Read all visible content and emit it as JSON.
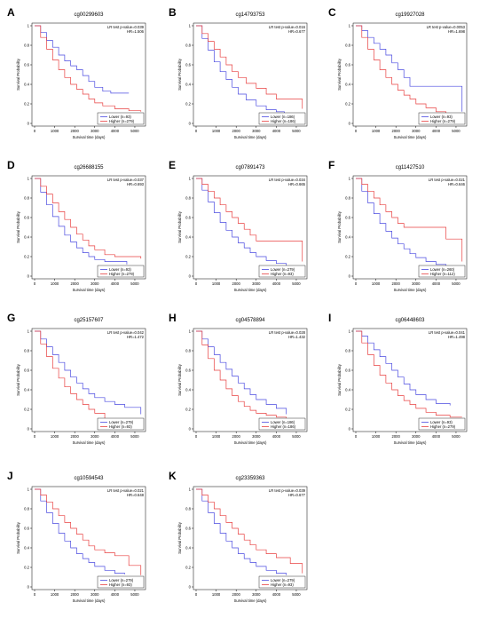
{
  "figure": {
    "xlabel": "Survival time (days)",
    "ylabel": "Survival Probability",
    "colors": {
      "lower": "#4a4ae0",
      "higher": "#e84040"
    }
  },
  "chart_data": [
    {
      "type": "line",
      "letter": "A",
      "title": "cg00299603",
      "stat1": "LR test p-value=0.039",
      "stat2": "HR=1.506",
      "xticks": [
        0,
        1000,
        2000,
        3000,
        4000,
        5000
      ],
      "yticks": [
        0,
        0.2,
        0.4,
        0.6,
        0.8,
        1.0
      ],
      "xlim": [
        0,
        5400
      ],
      "ylim": [
        0,
        1
      ],
      "series": [
        {
          "name": "Lower (n=93)",
          "color": "#4a4ae0",
          "x": [
            0,
            300,
            600,
            900,
            1200,
            1500,
            1800,
            2100,
            2400,
            2700,
            3000,
            3400,
            3800,
            4700
          ],
          "y": [
            1,
            0.93,
            0.85,
            0.78,
            0.7,
            0.64,
            0.59,
            0.55,
            0.49,
            0.43,
            0.37,
            0.33,
            0.31,
            0.31
          ]
        },
        {
          "name": "Higher (n=279)",
          "color": "#e84040",
          "x": [
            0,
            300,
            600,
            900,
            1200,
            1500,
            1800,
            2100,
            2400,
            2700,
            3000,
            3400,
            4000,
            4700,
            5300
          ],
          "y": [
            1,
            0.88,
            0.76,
            0.65,
            0.55,
            0.47,
            0.4,
            0.35,
            0.3,
            0.25,
            0.21,
            0.18,
            0.15,
            0.13,
            0.12
          ]
        }
      ]
    },
    {
      "type": "line",
      "letter": "B",
      "title": "cg14793753",
      "stat1": "LR test p-value=0.016",
      "stat2": "HR=0.677",
      "xticks": [
        0,
        1000,
        2000,
        3000,
        4000,
        5000
      ],
      "yticks": [
        0,
        0.2,
        0.4,
        0.6,
        0.8,
        1.0
      ],
      "xlim": [
        0,
        5400
      ],
      "ylim": [
        0,
        1
      ],
      "series": [
        {
          "name": "Lower (n=186)",
          "color": "#4a4ae0",
          "x": [
            0,
            300,
            600,
            900,
            1200,
            1500,
            1800,
            2100,
            2500,
            3000,
            3500,
            4000,
            4400
          ],
          "y": [
            1,
            0.87,
            0.75,
            0.63,
            0.53,
            0.45,
            0.37,
            0.3,
            0.24,
            0.18,
            0.14,
            0.12,
            0.1
          ]
        },
        {
          "name": "Higher (n=186)",
          "color": "#e84040",
          "x": [
            0,
            300,
            600,
            900,
            1200,
            1500,
            1800,
            2100,
            2500,
            3000,
            3500,
            4000,
            4500,
            5300
          ],
          "y": [
            1,
            0.92,
            0.84,
            0.76,
            0.68,
            0.6,
            0.53,
            0.47,
            0.41,
            0.36,
            0.3,
            0.25,
            0.25,
            0.15
          ]
        }
      ]
    },
    {
      "type": "line",
      "letter": "C",
      "title": "cg19927028",
      "stat1": "LR test p-value=0.0053",
      "stat2": "HR=1.698",
      "xticks": [
        0,
        1000,
        2000,
        3000,
        4000,
        5000
      ],
      "yticks": [
        0,
        0.2,
        0.4,
        0.6,
        0.8,
        1.0
      ],
      "xlim": [
        0,
        5400
      ],
      "ylim": [
        0,
        1
      ],
      "series": [
        {
          "name": "Lower (n=93)",
          "color": "#4a4ae0",
          "x": [
            0,
            300,
            600,
            900,
            1200,
            1500,
            1800,
            2100,
            2400,
            2700,
            3000,
            3500,
            4000,
            5300
          ],
          "y": [
            1,
            0.95,
            0.88,
            0.82,
            0.76,
            0.7,
            0.62,
            0.55,
            0.47,
            0.38,
            0.38,
            0.38,
            0.38,
            0.12
          ]
        },
        {
          "name": "Higher (n=279)",
          "color": "#e84040",
          "x": [
            0,
            300,
            600,
            900,
            1200,
            1500,
            1800,
            2100,
            2400,
            2700,
            3000,
            3500,
            4000,
            4500
          ],
          "y": [
            1,
            0.88,
            0.76,
            0.65,
            0.55,
            0.47,
            0.4,
            0.34,
            0.29,
            0.25,
            0.2,
            0.16,
            0.12,
            0.1
          ]
        }
      ]
    },
    {
      "type": "line",
      "letter": "D",
      "title": "cg26688155",
      "stat1": "LR test p-value=0.037",
      "stat2": "HR=0.693",
      "xticks": [
        0,
        1000,
        2000,
        3000,
        4000,
        5000
      ],
      "yticks": [
        0,
        0.2,
        0.4,
        0.6,
        0.8,
        1.0
      ],
      "xlim": [
        0,
        5400
      ],
      "ylim": [
        0,
        1
      ],
      "series": [
        {
          "name": "Lower (n=93)",
          "color": "#4a4ae0",
          "x": [
            0,
            300,
            600,
            900,
            1200,
            1500,
            1800,
            2100,
            2400,
            2700,
            3000,
            3500,
            4000,
            4600
          ],
          "y": [
            1,
            0.86,
            0.73,
            0.61,
            0.51,
            0.42,
            0.35,
            0.29,
            0.24,
            0.2,
            0.17,
            0.15,
            0.15,
            0.12
          ]
        },
        {
          "name": "Higher (n=279)",
          "color": "#e84040",
          "x": [
            0,
            300,
            600,
            900,
            1200,
            1500,
            1800,
            2100,
            2400,
            2700,
            3000,
            3500,
            4000,
            4500,
            5300
          ],
          "y": [
            1,
            0.92,
            0.84,
            0.75,
            0.66,
            0.58,
            0.5,
            0.43,
            0.37,
            0.31,
            0.27,
            0.22,
            0.2,
            0.2,
            0.18
          ]
        }
      ]
    },
    {
      "type": "line",
      "letter": "E",
      "title": "cg07891473",
      "stat1": "LR test p-value=0.034",
      "stat2": "HR=0.665",
      "xticks": [
        0,
        1000,
        2000,
        3000,
        4000,
        5000
      ],
      "yticks": [
        0,
        0.2,
        0.4,
        0.6,
        0.8,
        1.0
      ],
      "xlim": [
        0,
        5400
      ],
      "ylim": [
        0,
        1
      ],
      "series": [
        {
          "name": "Lower (n=279)",
          "color": "#4a4ae0",
          "x": [
            0,
            300,
            600,
            900,
            1200,
            1500,
            1800,
            2100,
            2400,
            2700,
            3000,
            3500,
            4000,
            4500
          ],
          "y": [
            1,
            0.88,
            0.76,
            0.65,
            0.55,
            0.47,
            0.4,
            0.34,
            0.29,
            0.24,
            0.2,
            0.16,
            0.13,
            0.1
          ]
        },
        {
          "name": "Higher (n=93)",
          "color": "#e84040",
          "x": [
            0,
            300,
            600,
            900,
            1200,
            1500,
            1800,
            2100,
            2400,
            2700,
            3000,
            3500,
            5300
          ],
          "y": [
            1,
            0.94,
            0.87,
            0.8,
            0.73,
            0.66,
            0.6,
            0.54,
            0.48,
            0.42,
            0.36,
            0.36,
            0.15
          ]
        }
      ]
    },
    {
      "type": "line",
      "letter": "F",
      "title": "cg11427510",
      "stat1": "LR test p-value=0.021",
      "stat2": "HR=0.646",
      "xticks": [
        0,
        1000,
        2000,
        3000,
        4000,
        5000
      ],
      "yticks": [
        0,
        0.2,
        0.4,
        0.6,
        0.8,
        1.0
      ],
      "xlim": [
        0,
        5400
      ],
      "ylim": [
        0,
        1
      ],
      "series": [
        {
          "name": "Lower (n=260)",
          "color": "#4a4ae0",
          "x": [
            0,
            300,
            600,
            900,
            1200,
            1500,
            1800,
            2100,
            2400,
            2700,
            3000,
            3500,
            4000,
            4500
          ],
          "y": [
            1,
            0.87,
            0.75,
            0.64,
            0.54,
            0.46,
            0.39,
            0.33,
            0.28,
            0.23,
            0.19,
            0.15,
            0.12,
            0.1
          ]
        },
        {
          "name": "Higher (n=112)",
          "color": "#e84040",
          "x": [
            0,
            300,
            600,
            900,
            1200,
            1500,
            1800,
            2100,
            2400,
            2700,
            3000,
            3500,
            4500,
            5300
          ],
          "y": [
            1,
            0.94,
            0.87,
            0.8,
            0.73,
            0.66,
            0.6,
            0.54,
            0.5,
            0.5,
            0.5,
            0.5,
            0.38,
            0.15
          ]
        }
      ]
    },
    {
      "type": "line",
      "letter": "G",
      "title": "cg25157607",
      "stat1": "LR test p-value=0.042",
      "stat2": "HR=1.472",
      "xticks": [
        0,
        1000,
        2000,
        3000,
        4000,
        5000
      ],
      "yticks": [
        0,
        0.2,
        0.4,
        0.6,
        0.8,
        1.0
      ],
      "xlim": [
        0,
        5400
      ],
      "ylim": [
        0,
        1
      ],
      "series": [
        {
          "name": "Lower (n=279)",
          "color": "#4a4ae0",
          "x": [
            0,
            300,
            600,
            900,
            1200,
            1500,
            1800,
            2100,
            2400,
            2700,
            3000,
            3500,
            4000,
            4500,
            5300
          ],
          "y": [
            1,
            0.92,
            0.84,
            0.76,
            0.68,
            0.6,
            0.53,
            0.47,
            0.41,
            0.36,
            0.32,
            0.28,
            0.25,
            0.22,
            0.15
          ]
        },
        {
          "name": "Higher (n=93)",
          "color": "#e84040",
          "x": [
            0,
            300,
            600,
            900,
            1200,
            1500,
            1800,
            2100,
            2400,
            2700,
            3000,
            3500
          ],
          "y": [
            1,
            0.87,
            0.74,
            0.62,
            0.52,
            0.43,
            0.36,
            0.3,
            0.25,
            0.2,
            0.16,
            0.08
          ]
        }
      ]
    },
    {
      "type": "line",
      "letter": "H",
      "title": "cg04578894",
      "stat1": "LR test p-value=0.028",
      "stat2": "HR=1.432",
      "xticks": [
        0,
        1000,
        2000,
        3000,
        4000,
        5000
      ],
      "yticks": [
        0,
        0.2,
        0.4,
        0.6,
        0.8,
        1.0
      ],
      "xlim": [
        0,
        5400
      ],
      "ylim": [
        0,
        1
      ],
      "series": [
        {
          "name": "Lower (n=186)",
          "color": "#4a4ae0",
          "x": [
            0,
            300,
            600,
            900,
            1200,
            1500,
            1800,
            2100,
            2400,
            2700,
            3000,
            3500,
            4000,
            4500
          ],
          "y": [
            1,
            0.92,
            0.84,
            0.76,
            0.68,
            0.61,
            0.54,
            0.47,
            0.41,
            0.35,
            0.3,
            0.25,
            0.21,
            0.15
          ]
        },
        {
          "name": "Higher (n=186)",
          "color": "#e84040",
          "x": [
            0,
            300,
            600,
            900,
            1200,
            1500,
            1800,
            2100,
            2400,
            2700,
            3000,
            3500,
            4000,
            4500
          ],
          "y": [
            1,
            0.86,
            0.72,
            0.6,
            0.5,
            0.41,
            0.34,
            0.28,
            0.23,
            0.19,
            0.16,
            0.14,
            0.12,
            0.1
          ]
        }
      ]
    },
    {
      "type": "line",
      "letter": "I",
      "title": "cg06448603",
      "stat1": "LR test p-value=0.041",
      "stat2": "HR=1.498",
      "xticks": [
        0,
        1000,
        2000,
        3000,
        4000,
        5000
      ],
      "yticks": [
        0,
        0.2,
        0.4,
        0.6,
        0.8,
        1.0
      ],
      "xlim": [
        0,
        5400
      ],
      "ylim": [
        0,
        1
      ],
      "series": [
        {
          "name": "Lower (n=93)",
          "color": "#4a4ae0",
          "x": [
            0,
            300,
            600,
            900,
            1200,
            1500,
            1800,
            2100,
            2400,
            2700,
            3000,
            3500,
            4000,
            4700
          ],
          "y": [
            1,
            0.95,
            0.88,
            0.81,
            0.74,
            0.67,
            0.6,
            0.53,
            0.46,
            0.4,
            0.35,
            0.3,
            0.26,
            0.24
          ]
        },
        {
          "name": "Higher (n=279)",
          "color": "#e84040",
          "x": [
            0,
            300,
            600,
            900,
            1200,
            1500,
            1800,
            2100,
            2400,
            2700,
            3000,
            3500,
            4000,
            4700,
            5300
          ],
          "y": [
            1,
            0.88,
            0.76,
            0.65,
            0.55,
            0.47,
            0.4,
            0.34,
            0.29,
            0.25,
            0.21,
            0.17,
            0.14,
            0.12,
            0.12
          ]
        }
      ]
    },
    {
      "type": "line",
      "letter": "J",
      "title": "cg10594543",
      "stat1": "LR test p-value=0.021",
      "stat2": "HR=0.648",
      "xticks": [
        0,
        1000,
        2000,
        3000,
        4000,
        5000
      ],
      "yticks": [
        0,
        0.2,
        0.4,
        0.6,
        0.8,
        1.0
      ],
      "xlim": [
        0,
        5400
      ],
      "ylim": [
        0,
        1
      ],
      "series": [
        {
          "name": "Lower (n=279)",
          "color": "#4a4ae0",
          "x": [
            0,
            300,
            600,
            900,
            1200,
            1500,
            1800,
            2100,
            2400,
            2700,
            3000,
            3500,
            4000,
            4500
          ],
          "y": [
            1,
            0.88,
            0.76,
            0.65,
            0.55,
            0.47,
            0.4,
            0.34,
            0.29,
            0.25,
            0.21,
            0.17,
            0.14,
            0.13
          ]
        },
        {
          "name": "Higher (n=93)",
          "color": "#e84040",
          "x": [
            0,
            300,
            600,
            900,
            1200,
            1500,
            1800,
            2100,
            2400,
            2700,
            3000,
            3500,
            4000,
            4700,
            5300
          ],
          "y": [
            1,
            0.94,
            0.87,
            0.8,
            0.73,
            0.66,
            0.6,
            0.54,
            0.48,
            0.42,
            0.38,
            0.35,
            0.32,
            0.22,
            0.12
          ]
        }
      ]
    },
    {
      "type": "line",
      "letter": "K",
      "title": "cg23359363",
      "stat1": "LR test p-value=0.039",
      "stat2": "HR=0.677",
      "xticks": [
        0,
        1000,
        2000,
        3000,
        4000,
        5000
      ],
      "yticks": [
        0,
        0.2,
        0.4,
        0.6,
        0.8,
        1.0
      ],
      "xlim": [
        0,
        5400
      ],
      "ylim": [
        0,
        1
      ],
      "series": [
        {
          "name": "Lower (n=279)",
          "color": "#4a4ae0",
          "x": [
            0,
            300,
            600,
            900,
            1200,
            1500,
            1800,
            2100,
            2400,
            2700,
            3000,
            3500,
            4000,
            4500
          ],
          "y": [
            1,
            0.88,
            0.76,
            0.65,
            0.55,
            0.47,
            0.4,
            0.34,
            0.29,
            0.25,
            0.21,
            0.17,
            0.14,
            0.12
          ]
        },
        {
          "name": "Higher (n=93)",
          "color": "#e84040",
          "x": [
            0,
            300,
            600,
            900,
            1200,
            1500,
            1800,
            2100,
            2400,
            2700,
            3000,
            3500,
            4000,
            4700,
            5300
          ],
          "y": [
            1,
            0.94,
            0.87,
            0.8,
            0.73,
            0.66,
            0.6,
            0.54,
            0.48,
            0.43,
            0.38,
            0.34,
            0.3,
            0.24,
            0.14
          ]
        }
      ]
    }
  ]
}
